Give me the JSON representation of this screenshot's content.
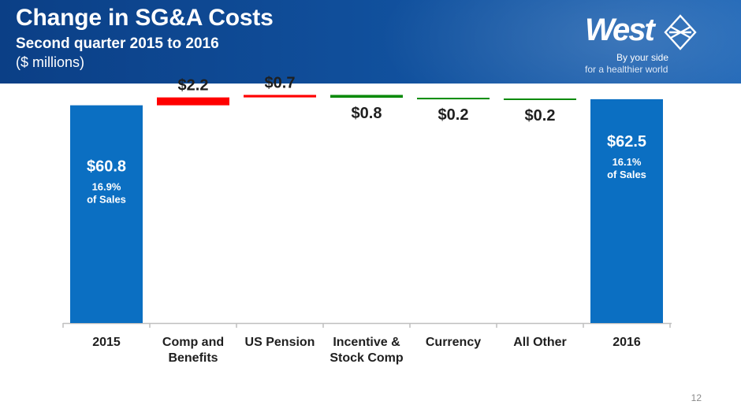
{
  "header": {
    "title": "Change in SG&A Costs",
    "subtitle": "Second quarter 2015 to 2016",
    "units": "($ millions)"
  },
  "logo": {
    "wordmark": "West",
    "tagline_1": "By your side",
    "tagline_2": "for a healthier world",
    "icon": "west-diamond-logo-icon"
  },
  "page_number": "12",
  "colors": {
    "header_bg": "#11519e",
    "total": "#0b6fc2",
    "increase": "#ff0000",
    "decrease": "#0a8a0a"
  },
  "chart_data": {
    "type": "bar",
    "subtype": "waterfall",
    "categories": [
      "2015",
      "Comp and Benefits",
      "US Pension",
      "Incentive & Stock Comp",
      "Currency",
      "All Other",
      "2016"
    ],
    "category_lines": [
      [
        "2015"
      ],
      [
        "Comp and",
        "Benefits"
      ],
      [
        "US Pension"
      ],
      [
        "Incentive &",
        "Stock Comp"
      ],
      [
        "Currency"
      ],
      [
        "All Other"
      ],
      [
        "2016"
      ]
    ],
    "values": [
      60.8,
      2.2,
      0.7,
      -0.8,
      -0.2,
      -0.2,
      62.5
    ],
    "kinds": [
      "total",
      "increase",
      "increase",
      "decrease",
      "decrease",
      "decrease",
      "total"
    ],
    "labels": [
      "$60.8",
      "$2.2",
      "$0.7",
      "$0.8",
      "$0.2",
      "$0.2",
      "$62.5"
    ],
    "sublabels": [
      [
        "16.9%",
        "of Sales"
      ],
      [],
      [],
      [],
      [],
      [],
      [
        "16.1%",
        "of Sales"
      ]
    ],
    "ylim": [
      0,
      66
    ]
  }
}
